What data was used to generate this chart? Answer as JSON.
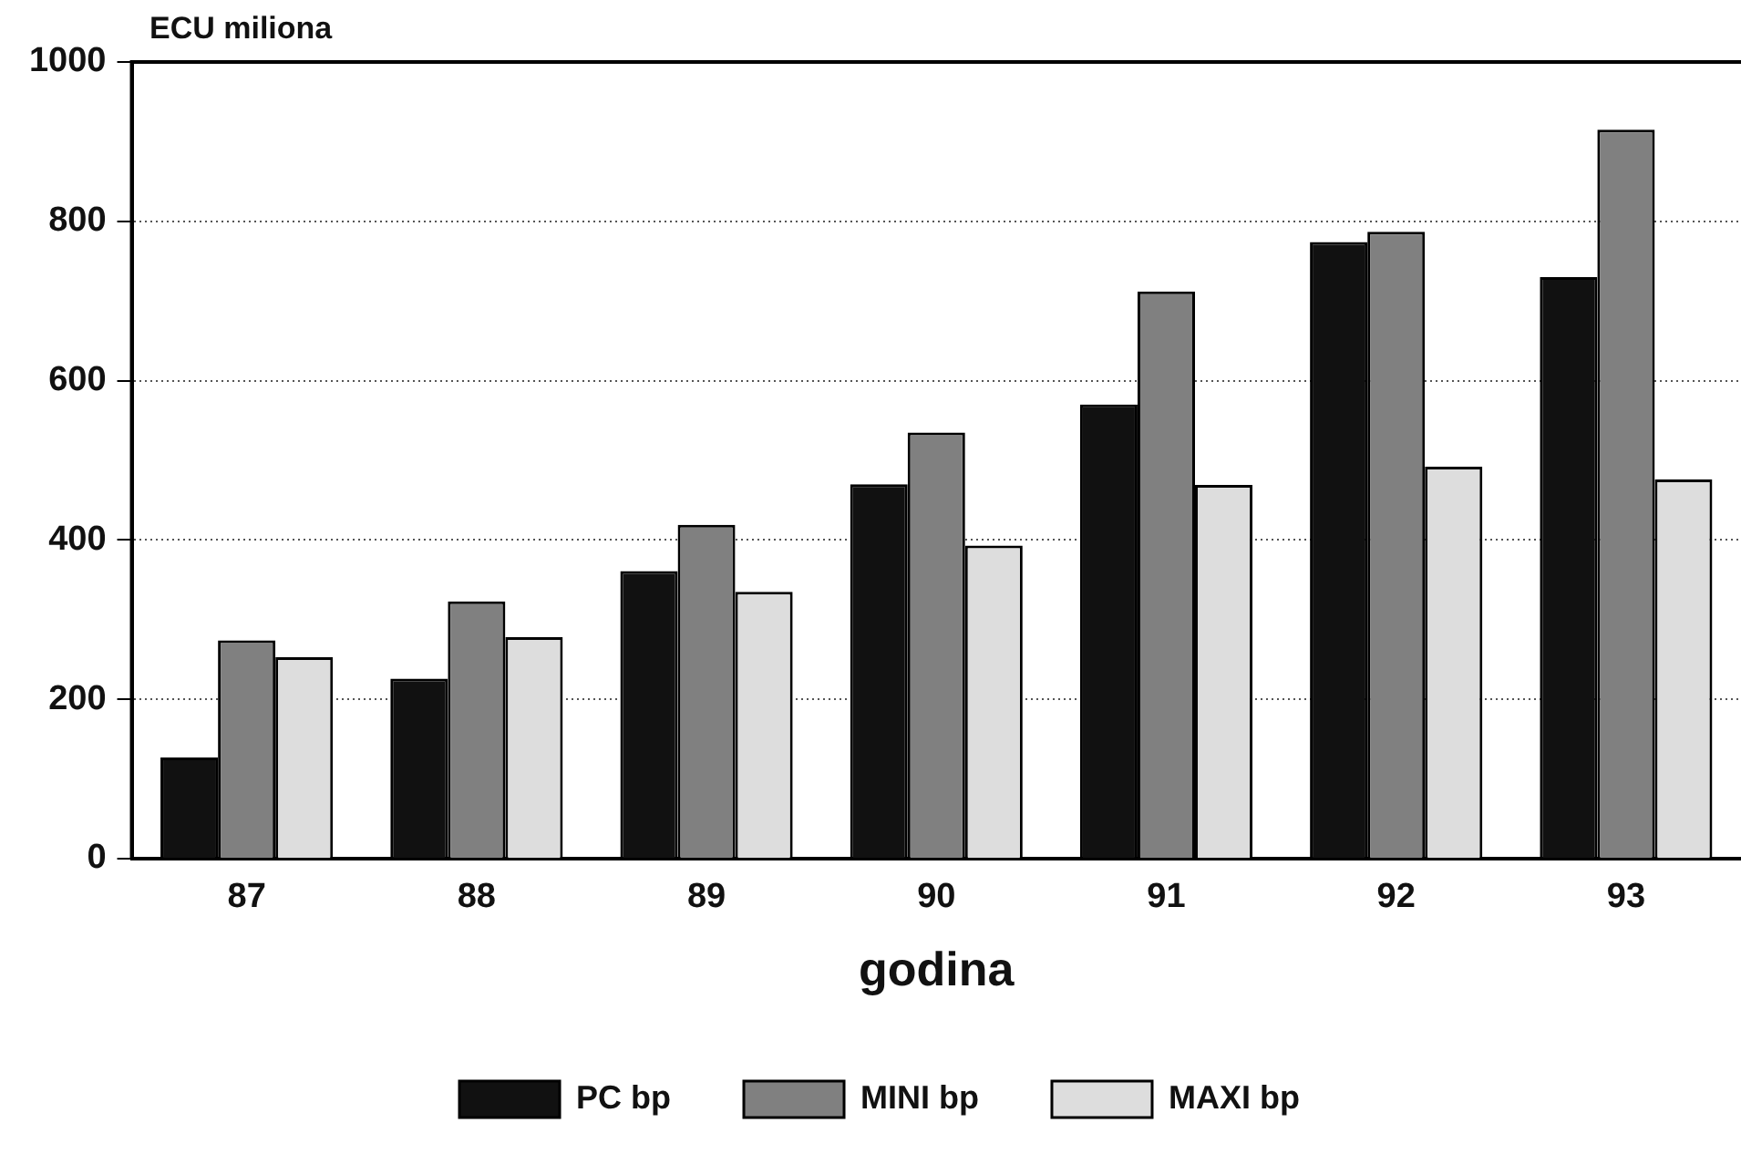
{
  "chart_data": {
    "type": "bar",
    "ylabel": "ECU miliona",
    "xlabel": "godina",
    "categories": [
      "87",
      "88",
      "89",
      "90",
      "91",
      "92",
      "93"
    ],
    "series": [
      {
        "name": "PC bp",
        "color": "#111111",
        "values": [
          127,
          226,
          361,
          470,
          570,
          774,
          730
        ]
      },
      {
        "name": "MINI bp",
        "color": "#808080",
        "values": [
          274,
          323,
          419,
          535,
          712,
          787,
          915
        ]
      },
      {
        "name": "MAXI bp",
        "color": "#dddddd",
        "values": [
          253,
          278,
          335,
          393,
          469,
          492,
          476
        ]
      }
    ],
    "ylim": [
      0,
      1000
    ],
    "yticks": [
      0,
      200,
      400,
      600,
      800,
      1000
    ],
    "grid": "y",
    "legend": "bottom"
  }
}
